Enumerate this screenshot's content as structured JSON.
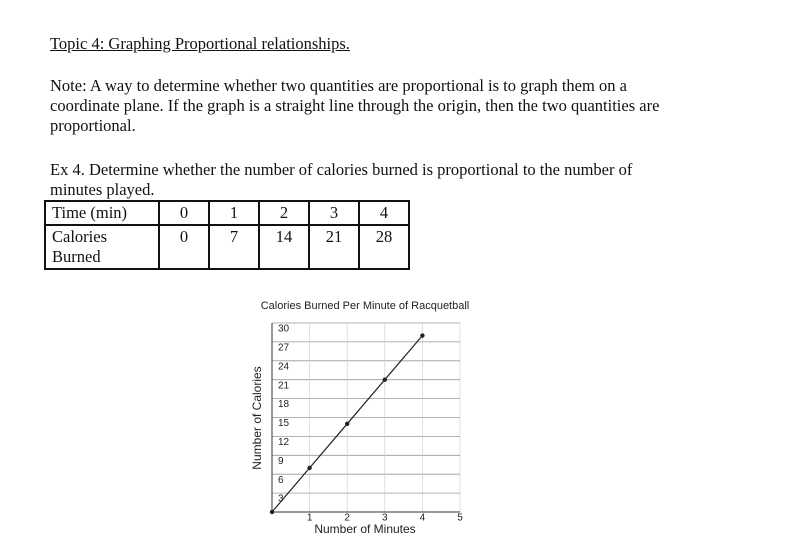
{
  "topic": "Topic 4:  Graphing Proportional relationships.",
  "note": "Note:  A way to determine whether two quantities are proportional is to graph them on a coordinate plane.  If the graph is a straight line through the origin, then the two quantities are proportional.",
  "example": "Ex 4.   Determine whether the number of calories burned is proportional to the number of minutes played.",
  "table": {
    "rows": [
      [
        "Time (min)",
        "0",
        "1",
        "2",
        "3",
        "4"
      ],
      [
        "Calories Burned",
        "0",
        "7",
        "14",
        "21",
        "28"
      ]
    ]
  },
  "chart_data": {
    "type": "line",
    "title": "Calories Burned Per Minute of Racquetball",
    "x_label": "Number of Minutes",
    "y_label": "Number of Calories",
    "x": [
      0,
      1,
      2,
      3,
      4
    ],
    "values": [
      0,
      7,
      14,
      21,
      28
    ],
    "color": "#222222",
    "xlim": [
      0,
      5
    ],
    "xticks": [
      1,
      2,
      3,
      4,
      5
    ],
    "ylim": [
      0,
      30
    ],
    "yticks": [
      3,
      6,
      9,
      12,
      15,
      18,
      21,
      24,
      27,
      30
    ],
    "grid": true
  }
}
